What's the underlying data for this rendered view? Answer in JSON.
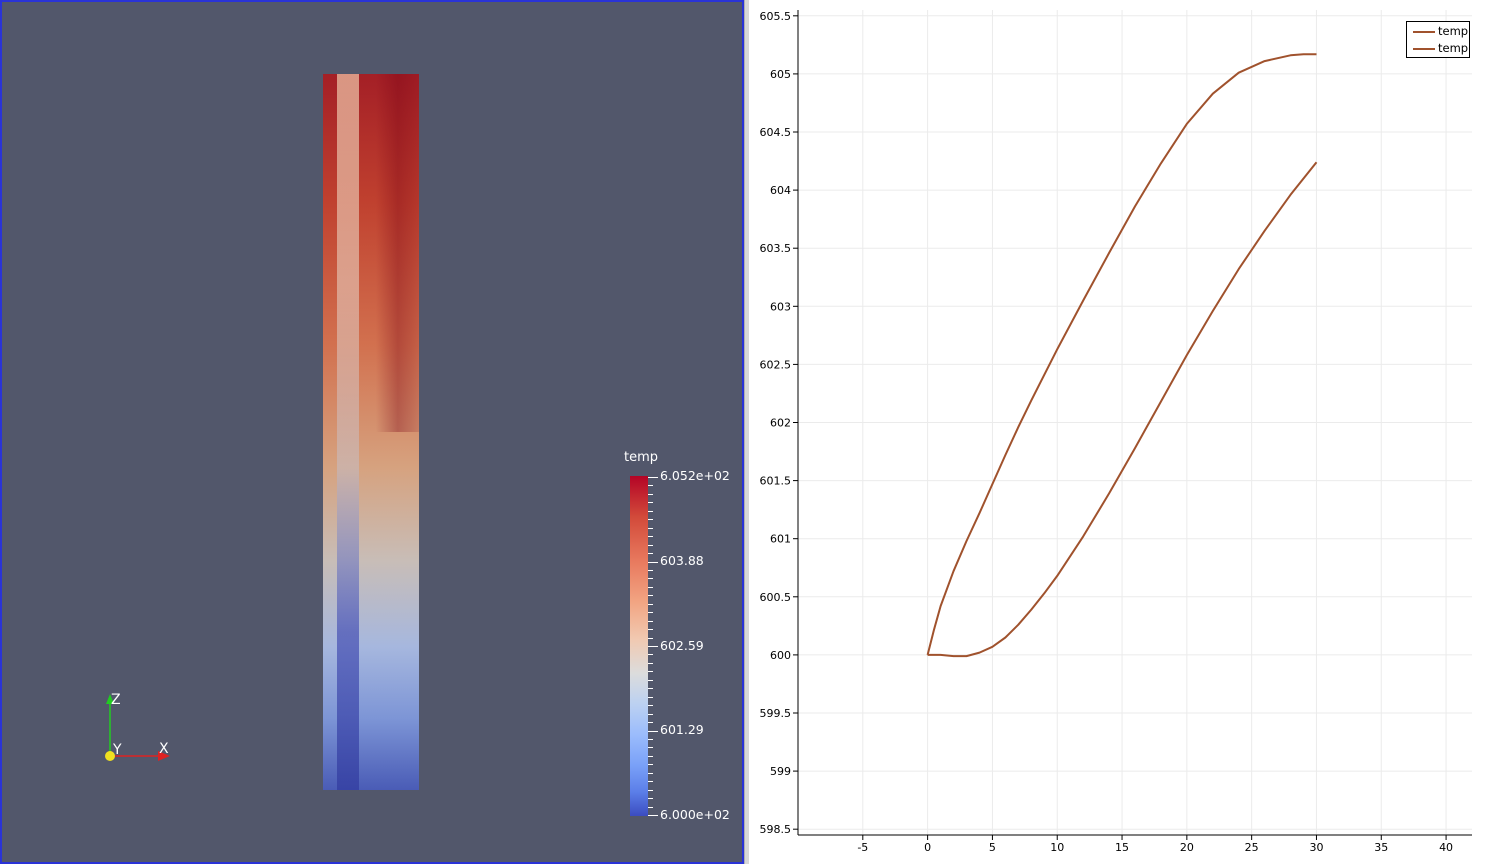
{
  "render_view": {
    "background": "#52576b",
    "active_border": "#2a33d6",
    "color_legend": {
      "title": "temp",
      "labels": [
        "6.052e+02",
        "603.88",
        "602.59",
        "601.29",
        "6.000e+02"
      ],
      "colormap": "cool-to-warm",
      "range": [
        600.0,
        605.2
      ]
    },
    "orientation_axes": {
      "x_label": "X",
      "y_label": "Y",
      "z_label": "Z"
    }
  },
  "chart_data": {
    "type": "line",
    "title": "",
    "xlabel": "",
    "ylabel": "",
    "xlim": [
      -10,
      42
    ],
    "ylim": [
      598.45,
      605.55
    ],
    "x_ticks": [
      -5,
      0,
      5,
      10,
      15,
      20,
      25,
      30,
      35,
      40
    ],
    "x_tick_labels": [
      "-5",
      "0",
      "5",
      "10",
      "15",
      "20",
      "25",
      "30",
      "35",
      "40"
    ],
    "y_ticks": [
      598.5,
      599,
      599.5,
      600,
      600.5,
      601,
      601.5,
      602,
      602.5,
      603,
      603.5,
      604,
      604.5,
      605,
      605.5
    ],
    "y_tick_labels": [
      "598.5",
      "599",
      "599.5",
      "600",
      "600.5",
      "601",
      "601.5",
      "602",
      "602.5",
      "603",
      "603.5",
      "604",
      "604.5",
      "605",
      "605.5"
    ],
    "grid": true,
    "legend_position": "top-right",
    "series": [
      {
        "name": "temp",
        "color": "#a0522d",
        "x": [
          0,
          0.5,
          1,
          2,
          3,
          4,
          5,
          6,
          7,
          8,
          10,
          12,
          14,
          16,
          18,
          20,
          22,
          24,
          26,
          28,
          29,
          30
        ],
        "y": [
          600.0,
          600.22,
          600.42,
          600.72,
          600.98,
          601.22,
          601.47,
          601.72,
          601.96,
          602.19,
          602.63,
          603.05,
          603.46,
          603.86,
          604.23,
          604.57,
          604.83,
          605.01,
          605.11,
          605.16,
          605.17,
          605.17
        ]
      },
      {
        "name": "temp",
        "color": "#a0522d",
        "x": [
          0,
          1,
          2,
          3,
          4,
          5,
          6,
          7,
          8,
          9,
          10,
          12,
          14,
          16,
          18,
          20,
          22,
          24,
          26,
          28,
          30
        ],
        "y": [
          600.0,
          600.0,
          599.99,
          599.99,
          600.02,
          600.07,
          600.15,
          600.26,
          600.39,
          600.53,
          600.68,
          601.02,
          601.39,
          601.78,
          602.18,
          602.58,
          602.96,
          603.32,
          603.65,
          603.96,
          604.24
        ]
      }
    ]
  }
}
